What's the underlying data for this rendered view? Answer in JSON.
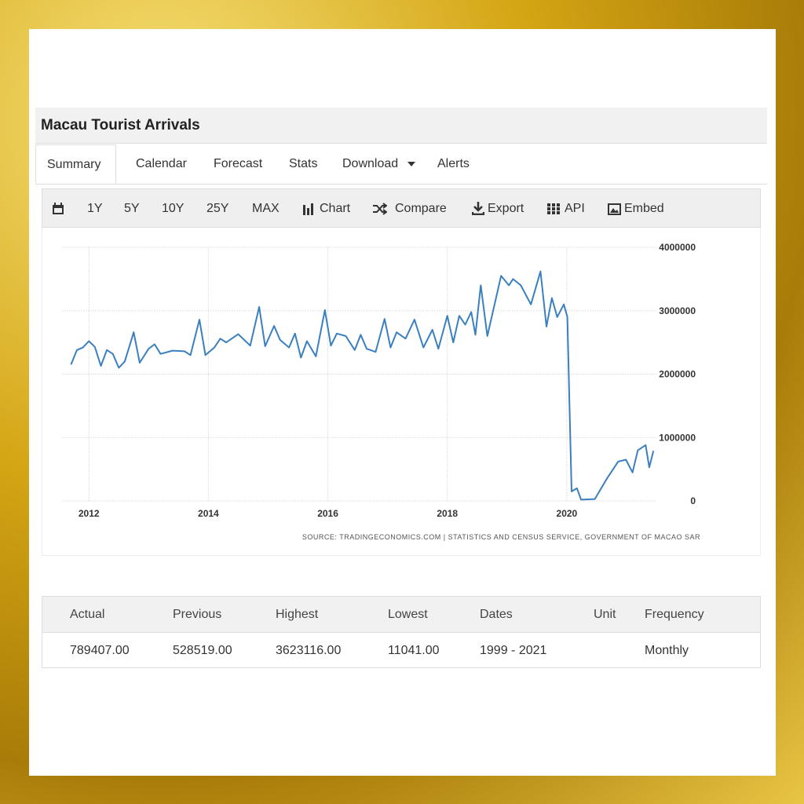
{
  "header": {
    "title": "Macau Tourist Arrivals"
  },
  "tabs": [
    "Summary",
    "Calendar",
    "Forecast",
    "Stats",
    "Download",
    "Alerts"
  ],
  "toolbar": [
    "1Y",
    "5Y",
    "10Y",
    "25Y",
    "MAX",
    "Chart",
    "Compare",
    "Export",
    "API",
    "Embed"
  ],
  "chart_data": {
    "type": "line",
    "x": [
      2011.7,
      2011.8,
      2011.9,
      2012.0,
      2012.1,
      2012.2,
      2012.3,
      2012.4,
      2012.5,
      2012.6,
      2012.75,
      2012.85,
      2013.0,
      2013.1,
      2013.2,
      2013.4,
      2013.6,
      2013.7,
      2013.85,
      2013.95,
      2014.1,
      2014.2,
      2014.3,
      2014.5,
      2014.7,
      2014.85,
      2014.95,
      2015.1,
      2015.2,
      2015.35,
      2015.45,
      2015.55,
      2015.65,
      2015.8,
      2015.95,
      2016.05,
      2016.15,
      2016.3,
      2016.45,
      2016.55,
      2016.65,
      2016.8,
      2016.95,
      2017.05,
      2017.15,
      2017.3,
      2017.45,
      2017.6,
      2017.75,
      2017.85,
      2018.0,
      2018.1,
      2018.2,
      2018.3,
      2018.4,
      2018.47,
      2018.56,
      2018.67,
      2018.9,
      2019.03,
      2019.1,
      2019.23,
      2019.4,
      2019.56,
      2019.66,
      2019.75,
      2019.84,
      2019.95,
      2020.01,
      2020.08,
      2020.17,
      2020.24,
      2020.47,
      2020.67,
      2020.86,
      2020.99,
      2021.1,
      2021.19,
      2021.32,
      2021.38,
      2021.45
    ],
    "series": [
      {
        "color": "#3a7fbf",
        "values": [
          2150000,
          2380000,
          2420000,
          2520000,
          2430000,
          2130000,
          2380000,
          2320000,
          2100000,
          2200000,
          2660000,
          2180000,
          2400000,
          2470000,
          2320000,
          2370000,
          2360000,
          2300000,
          2860000,
          2300000,
          2420000,
          2560000,
          2500000,
          2630000,
          2450000,
          3060000,
          2440000,
          2760000,
          2540000,
          2420000,
          2640000,
          2260000,
          2520000,
          2280000,
          3010000,
          2450000,
          2640000,
          2600000,
          2380000,
          2620000,
          2400000,
          2350000,
          2870000,
          2420000,
          2660000,
          2560000,
          2860000,
          2420000,
          2700000,
          2400000,
          2920000,
          2500000,
          2920000,
          2780000,
          2980000,
          2620000,
          3400000,
          2600000,
          3550000,
          3400000,
          3500000,
          3400000,
          3100000,
          3620000,
          2750000,
          3200000,
          2900000,
          3100000,
          2900000,
          150000,
          200000,
          20000,
          30000,
          350000,
          620000,
          650000,
          450000,
          800000,
          880000,
          530000,
          790000
        ]
      }
    ],
    "xlim": [
      2011.55,
      2021.5
    ],
    "xticks": [
      2012,
      2014,
      2016,
      2018,
      2020
    ],
    "ylim": [
      0,
      4000000
    ],
    "yticks": [
      0,
      1000000,
      2000000,
      3000000,
      4000000
    ],
    "grid": true,
    "source": "SOURCE: TRADINGECONOMICS.COM | STATISTICS AND CENSUS SERVICE, GOVERNMENT OF MACAO SAR"
  },
  "table": {
    "columns": [
      {
        "header": "Actual",
        "value": "789407.00"
      },
      {
        "header": "Previous",
        "value": "528519.00"
      },
      {
        "header": "Highest",
        "value": "3623116.00"
      },
      {
        "header": "Lowest",
        "value": "11041.00"
      },
      {
        "header": "Dates",
        "value": "1999 - 2021"
      },
      {
        "header": "Unit"
      },
      {
        "header": "Frequency",
        "value": "Monthly"
      }
    ]
  }
}
